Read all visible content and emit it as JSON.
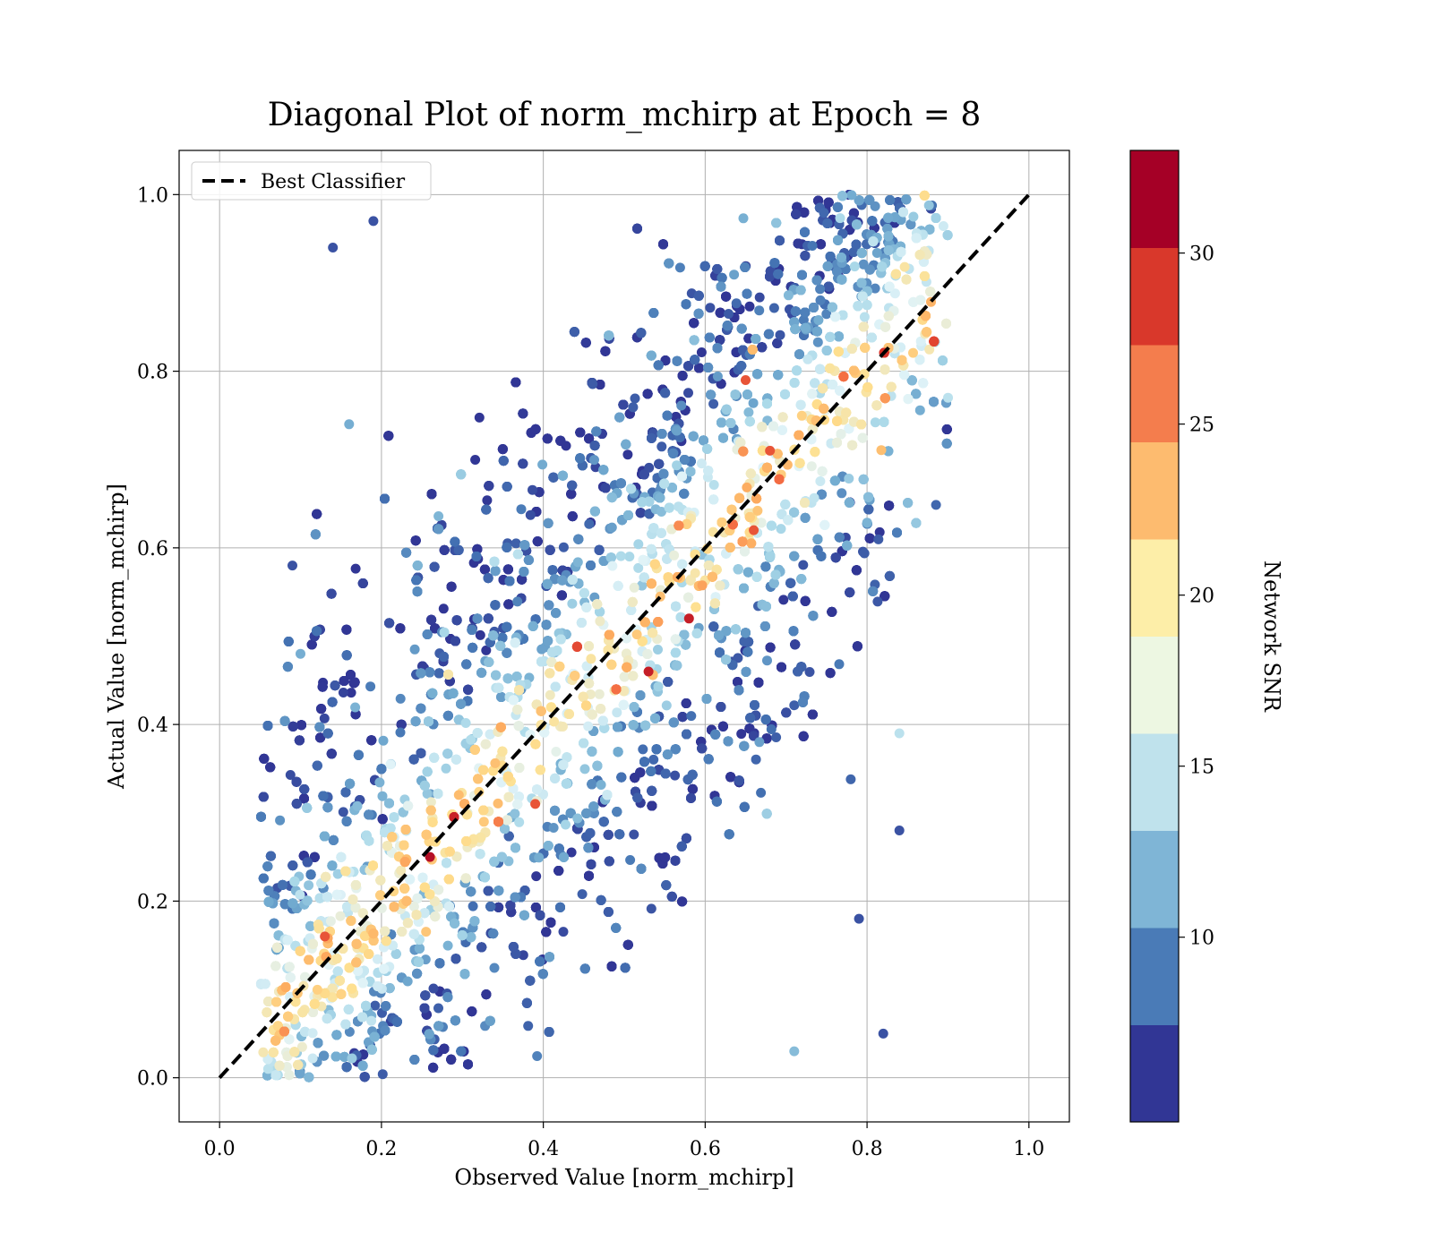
{
  "chart_data": {
    "type": "scatter",
    "title": "Diagonal Plot of norm_mchirp at Epoch = 8",
    "xlabel": "Observed Value [norm_mchirp]",
    "ylabel": "Actual Value [norm_mchirp]",
    "xlim": [
      -0.05,
      1.05
    ],
    "ylim": [
      -0.05,
      1.05
    ],
    "xticks": [
      0.0,
      0.2,
      0.4,
      0.6,
      0.8,
      1.0
    ],
    "yticks": [
      0.0,
      0.2,
      0.4,
      0.6,
      0.8,
      1.0
    ],
    "xtick_labels": [
      "0.0",
      "0.2",
      "0.4",
      "0.6",
      "0.8",
      "1.0"
    ],
    "ytick_labels": [
      "0.0",
      "0.2",
      "0.4",
      "0.6",
      "0.8",
      "1.0"
    ],
    "grid": true,
    "legend": {
      "position": "upper-left",
      "entries": [
        {
          "label": "Best Classifier",
          "style": "dashed",
          "color": "#000000"
        }
      ]
    },
    "reference_line": {
      "name": "Best Classifier",
      "x": [
        0.0,
        1.0
      ],
      "y": [
        0.0,
        1.0
      ],
      "style": "dashed",
      "color": "#000000"
    },
    "colorbar": {
      "label": "Network SNR",
      "range": [
        4.6,
        33.0
      ],
      "ticks": [
        10,
        15,
        20,
        25,
        30
      ],
      "tick_labels": [
        "10",
        "15",
        "20",
        "25",
        "30"
      ],
      "colors": [
        "#313695",
        "#4575b4",
        "#74add1",
        "#abd9e9",
        "#e0f3f8",
        "#fee090",
        "#fdae61",
        "#f46d43",
        "#d73027",
        "#a50026"
      ],
      "segment_colors": [
        "#313695",
        "#4a7bb7",
        "#7fb5d6",
        "#bfe2ec",
        "#edf7e2",
        "#fdeea8",
        "#fdbb6f",
        "#f47d4d",
        "#d9382b",
        "#a50026"
      ]
    },
    "series": [
      {
        "name": "Network SNR",
        "marker": "circle",
        "density_model": {
          "x_range": [
            0.05,
            0.9
          ],
          "y_range": [
            0.0,
            1.0
          ],
          "snr_peak_along_diagonal": 20,
          "snr_far_from_diagonal": 6
        },
        "sample_points": [
          {
            "x": 0.26,
            "y": 0.25,
            "snr": 32
          },
          {
            "x": 0.53,
            "y": 0.46,
            "snr": 31
          },
          {
            "x": 0.58,
            "y": 0.52,
            "snr": 31
          },
          {
            "x": 0.65,
            "y": 0.79,
            "snr": 28
          },
          {
            "x": 0.68,
            "y": 0.71,
            "snr": 28
          },
          {
            "x": 0.66,
            "y": 0.62,
            "snr": 28
          },
          {
            "x": 0.39,
            "y": 0.31,
            "snr": 28
          },
          {
            "x": 0.13,
            "y": 0.16,
            "snr": 28
          },
          {
            "x": 0.82,
            "y": 0.05,
            "snr": 6
          },
          {
            "x": 0.84,
            "y": 0.28,
            "snr": 6
          },
          {
            "x": 0.79,
            "y": 0.18,
            "snr": 6
          },
          {
            "x": 0.19,
            "y": 0.97,
            "snr": 6
          },
          {
            "x": 0.09,
            "y": 0.58,
            "snr": 6
          },
          {
            "x": 0.14,
            "y": 0.94,
            "snr": 6
          },
          {
            "x": 0.06,
            "y": 0.01,
            "snr": 15
          },
          {
            "x": 0.9,
            "y": 0.77,
            "snr": 15
          },
          {
            "x": 0.84,
            "y": 0.39,
            "snr": 15
          },
          {
            "x": 0.71,
            "y": 0.03,
            "snr": 12
          },
          {
            "x": 0.1,
            "y": 0.48,
            "snr": 11
          },
          {
            "x": 0.16,
            "y": 0.74,
            "snr": 11
          }
        ]
      }
    ]
  }
}
